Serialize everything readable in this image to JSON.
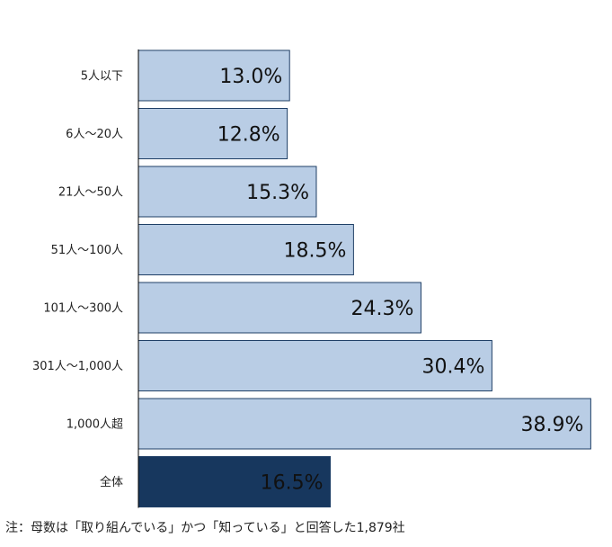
{
  "chart_data": {
    "type": "bar",
    "orientation": "horizontal",
    "categories": [
      "5人以下",
      "6人～20人",
      "21人～50人",
      "51人～100人",
      "101人～300人",
      "301人～1,000人",
      "1,000人超",
      "全体"
    ],
    "values": [
      13.0,
      12.8,
      15.3,
      18.5,
      24.3,
      30.4,
      38.9,
      16.5
    ],
    "data_labels": [
      "13.0%",
      "12.8%",
      "15.3%",
      "18.5%",
      "24.3%",
      "30.4%",
      "38.9%",
      "16.5%"
    ],
    "highlight_category": "全体",
    "xlim": [
      0,
      40
    ],
    "colors": {
      "bar": "#b9cde5",
      "bar_border": "#1f3f66",
      "highlight": "#17375e",
      "highlight_text": "#ffffff",
      "axis": "#000000"
    },
    "note": "注：母数は「取り組んでいる」かつ「知っている」と回答した1,879社",
    "grid": false,
    "legend": "none"
  }
}
